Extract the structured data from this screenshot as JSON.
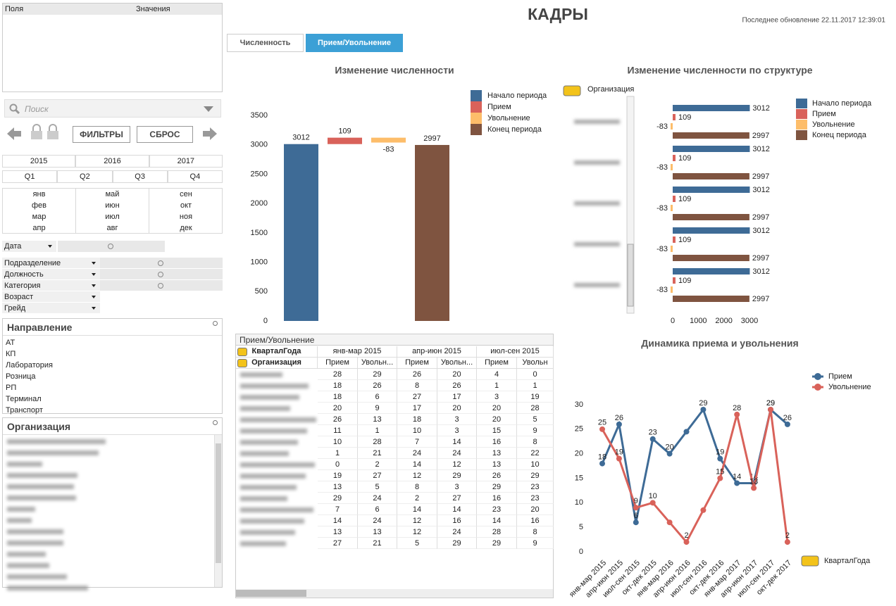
{
  "header": {
    "title": "КАДРЫ",
    "last_update": "Последнее обновление 22.11.2017 12:39:01"
  },
  "tabs": [
    "Численность",
    "Прием/Увольнение"
  ],
  "fields": {
    "columns": [
      "Поля",
      "Значения"
    ]
  },
  "search_placeholder": "Поиск",
  "buttons": [
    "ФИЛЬТРЫ",
    "СБРОС"
  ],
  "years": [
    "2015",
    "2016",
    "2017"
  ],
  "quarters": [
    "Q1",
    "Q2",
    "Q3",
    "Q4"
  ],
  "months": [
    "янв",
    "фев",
    "мар",
    "апр",
    "май",
    "июн",
    "июл",
    "авг",
    "сен",
    "окт",
    "ноя",
    "дек"
  ],
  "date_field": "Дата",
  "dimensions": [
    "Подразделение",
    "Должность",
    "Категория",
    "Возраст",
    "Грейд"
  ],
  "direction": {
    "title": "Направление",
    "items": [
      "АТ",
      "КП",
      "Лаборатория",
      "Розница",
      "РП",
      "Терминал",
      "Транспорт"
    ]
  },
  "organization": {
    "title": "Организация"
  },
  "table": {
    "title": "Прием/Увольнение",
    "row_dim": "КварталГода",
    "col_dim": "Организация",
    "periods": [
      "янв-мар 2015",
      "апр-июн 2015",
      "июл-сен 2015"
    ],
    "measures": [
      "Прием",
      "Увольн...",
      "Прием",
      "Увольн...",
      "Прием",
      "Увольн"
    ],
    "rows": [
      [
        28,
        29,
        26,
        20,
        4,
        0
      ],
      [
        18,
        26,
        8,
        26,
        1,
        1
      ],
      [
        18,
        6,
        27,
        17,
        3,
        19
      ],
      [
        20,
        9,
        17,
        20,
        20,
        28
      ],
      [
        26,
        13,
        18,
        3,
        20,
        5
      ],
      [
        11,
        1,
        10,
        3,
        15,
        9
      ],
      [
        10,
        28,
        7,
        14,
        16,
        8
      ],
      [
        1,
        21,
        24,
        24,
        13,
        22
      ],
      [
        0,
        2,
        14,
        12,
        13,
        10
      ],
      [
        19,
        27,
        12,
        29,
        26,
        29
      ],
      [
        13,
        5,
        8,
        3,
        29,
        23
      ],
      [
        29,
        24,
        2,
        27,
        16,
        23
      ],
      [
        7,
        6,
        14,
        14,
        23,
        20
      ],
      [
        14,
        24,
        12,
        16,
        14,
        16
      ],
      [
        13,
        13,
        12,
        24,
        28,
        8
      ],
      [
        27,
        21,
        5,
        29,
        29,
        9
      ]
    ]
  },
  "chart_data": [
    {
      "type": "waterfall",
      "title": "Изменение численности",
      "series": [
        {
          "name": "Начало периода",
          "color": "#3e6b96",
          "values": [
            3012
          ]
        },
        {
          "name": "Прием",
          "color": "#d9625a",
          "values": [
            109
          ]
        },
        {
          "name": "Увольнение",
          "color": "#fdbd6a",
          "values": [
            -83
          ]
        },
        {
          "name": "Конец периода",
          "color": "#7f5440",
          "values": [
            2997
          ]
        }
      ],
      "ylim": [
        0,
        3500
      ],
      "yticks": [
        0,
        500,
        1000,
        1500,
        2000,
        2500,
        3000,
        3500
      ]
    },
    {
      "type": "hbar",
      "title": "Изменение численности по структуре",
      "dimension": "Организация",
      "categories": [
        null,
        null,
        null,
        null,
        null
      ],
      "series": [
        {
          "name": "Начало периода",
          "color": "#3e6b96",
          "values": [
            3012,
            3012,
            3012,
            3012,
            3012
          ]
        },
        {
          "name": "Прием",
          "color": "#d9625a",
          "values": [
            109,
            109,
            109,
            109,
            109
          ]
        },
        {
          "name": "Увольнение",
          "color": "#fdbd6a",
          "values": [
            -83,
            -83,
            -83,
            -83,
            -83
          ]
        },
        {
          "name": "Конец периода",
          "color": "#7f5440",
          "values": [
            2997,
            2997,
            2997,
            2997,
            2997
          ]
        }
      ],
      "xlim": [
        0,
        3000
      ],
      "xticks": [
        0,
        1000,
        2000,
        3000
      ]
    },
    {
      "type": "line",
      "title": "Динамика приема и увольнения",
      "dimension": "КварталГода",
      "categories": [
        "янв-мар 2015",
        "апр-июн 2015",
        "июл-сен 2015",
        "окт-дек 2015",
        "янв-мар 2016",
        "апр-июн 2016",
        "июл-сен 2016",
        "окт-дек 2016",
        "янв-мар 2017",
        "апр-июн 2017",
        "июл-сен 2017",
        "окт-дек 2017"
      ],
      "series": [
        {
          "name": "Прием",
          "color": "#3e6b96",
          "values": [
            18,
            26,
            6,
            23,
            20,
            24.5,
            29,
            19,
            14,
            14,
            29,
            26
          ],
          "value_labels": [
            "18",
            "26",
            "6",
            "23",
            "20",
            null,
            "29",
            "19",
            "14",
            "14",
            "29",
            "26"
          ]
        },
        {
          "name": "Увольнение",
          "color": "#d9625a",
          "values": [
            25,
            19,
            9,
            10,
            6,
            2,
            8.5,
            15,
            28,
            13,
            29,
            2
          ],
          "value_labels": [
            "25",
            "19",
            "9",
            "10",
            null,
            "2",
            null,
            "15",
            "28",
            "13",
            "29",
            "2"
          ]
        }
      ],
      "ylim": [
        0,
        30
      ],
      "yticks": [
        0,
        5,
        10,
        15,
        20,
        25,
        30
      ]
    }
  ]
}
